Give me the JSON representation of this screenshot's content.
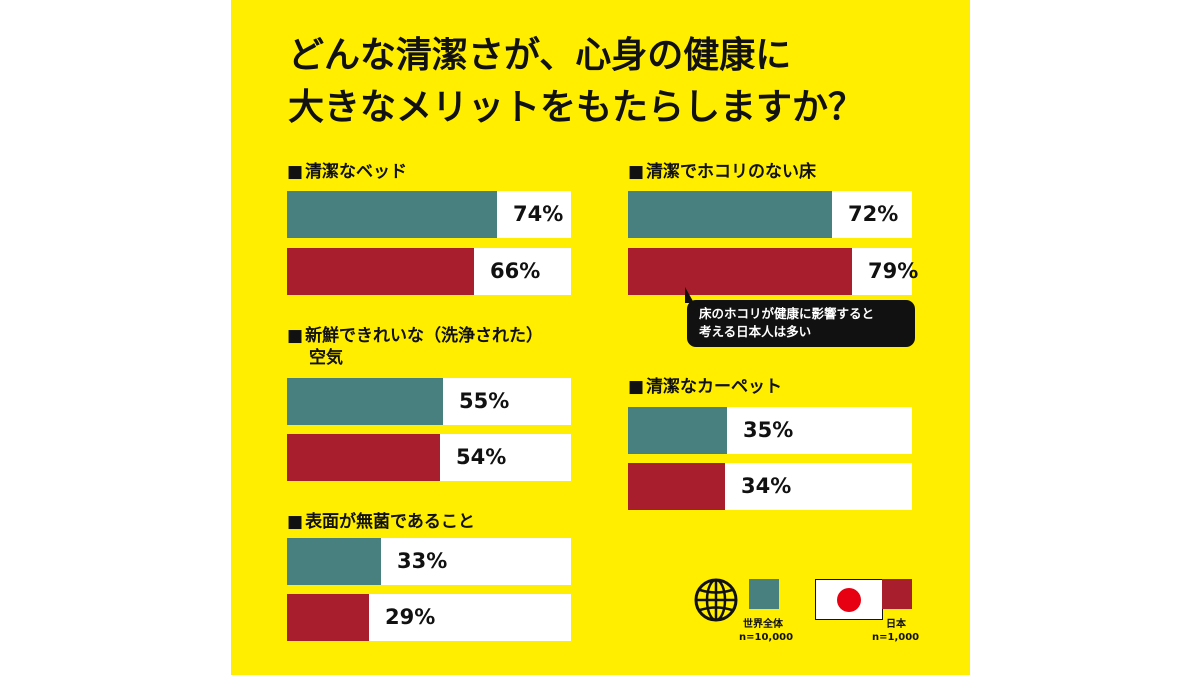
{
  "title": {
    "line1": "どんな清潔さが、心身の健康に",
    "line2": "大きなメリットをもたらしますか？"
  },
  "colors": {
    "world": "#47807e",
    "japan": "#a81e2c",
    "background": "#ffee00",
    "japan_flag_disc": "#e60012"
  },
  "chart_data": {
    "type": "bar",
    "orientation": "horizontal",
    "unit": "%",
    "xlim": [
      0,
      100
    ],
    "series": [
      {
        "name": "世界全体",
        "sample": "n=10,000",
        "icon": "globe-icon"
      },
      {
        "name": "日本",
        "sample": "n=1,000",
        "icon": "japan-flag-icon"
      }
    ],
    "groups": [
      {
        "label": "清潔なベッド",
        "label_line2": "",
        "world": 74,
        "japan": 66,
        "world_label": "74%",
        "japan_label": "66%"
      },
      {
        "label": "新鮮できれいな（洗浄された）",
        "label_line2": "空気",
        "world": 55,
        "japan": 54,
        "world_label": "55%",
        "japan_label": "54%"
      },
      {
        "label": "表面が無菌であること",
        "label_line2": "",
        "world": 33,
        "japan": 29,
        "world_label": "33%",
        "japan_label": "29%"
      },
      {
        "label": "清潔でホコリのない床",
        "label_line2": "",
        "world": 72,
        "japan": 79,
        "world_label": "72%",
        "japan_label": "79%"
      },
      {
        "label": "清潔なカーペット",
        "label_line2": "",
        "world": 35,
        "japan": 34,
        "world_label": "35%",
        "japan_label": "34%"
      }
    ],
    "annotation": {
      "line1": "床のホコリが健康に影響すると",
      "line2": "考える日本人は多い"
    },
    "legend_position": "bottom-right"
  },
  "legend": {
    "world_label": "世界全体",
    "world_n": "n=10,000",
    "japan_label": "日本",
    "japan_n": "n=1,000"
  },
  "label_prefix": "■"
}
